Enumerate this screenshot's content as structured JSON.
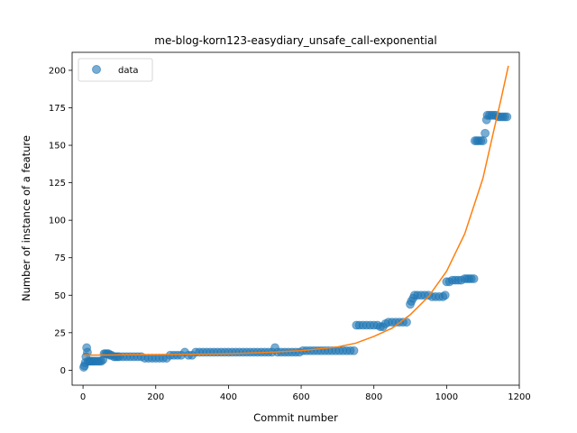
{
  "chart_data": {
    "type": "scatter",
    "title": "me-blog-korn123-easydiary_unsafe_call-exponential",
    "xlabel": "Commit number",
    "ylabel": "Number of instance of a feature",
    "xlim": [
      -30,
      1200
    ],
    "ylim": [
      -10,
      212
    ],
    "xticks": [
      0,
      200,
      400,
      600,
      800,
      1000,
      1200
    ],
    "yticks": [
      0,
      25,
      50,
      75,
      100,
      125,
      150,
      175,
      200
    ],
    "legend": {
      "placement": "top-left",
      "entries": [
        "data"
      ]
    },
    "colors": {
      "data": "#1f77b4",
      "fit": "#ff7f0e"
    },
    "series": [
      {
        "name": "data",
        "kind": "scatter",
        "points": [
          [
            2,
            2
          ],
          [
            4,
            3
          ],
          [
            6,
            5
          ],
          [
            8,
            9
          ],
          [
            10,
            15
          ],
          [
            12,
            12
          ],
          [
            14,
            6
          ],
          [
            18,
            6
          ],
          [
            22,
            6
          ],
          [
            26,
            6
          ],
          [
            30,
            6
          ],
          [
            35,
            6
          ],
          [
            40,
            6
          ],
          [
            45,
            6
          ],
          [
            50,
            6
          ],
          [
            55,
            7
          ],
          [
            58,
            11
          ],
          [
            62,
            11
          ],
          [
            66,
            11
          ],
          [
            70,
            11
          ],
          [
            74,
            10
          ],
          [
            78,
            10
          ],
          [
            85,
            9
          ],
          [
            90,
            9
          ],
          [
            95,
            9
          ],
          [
            100,
            9
          ],
          [
            110,
            9
          ],
          [
            120,
            9
          ],
          [
            130,
            9
          ],
          [
            140,
            9
          ],
          [
            150,
            9
          ],
          [
            160,
            9
          ],
          [
            170,
            8
          ],
          [
            180,
            8
          ],
          [
            190,
            8
          ],
          [
            200,
            8
          ],
          [
            210,
            8
          ],
          [
            220,
            8
          ],
          [
            230,
            8
          ],
          [
            240,
            10
          ],
          [
            250,
            10
          ],
          [
            260,
            10
          ],
          [
            270,
            10
          ],
          [
            280,
            12
          ],
          [
            290,
            10
          ],
          [
            300,
            10
          ],
          [
            310,
            12
          ],
          [
            320,
            12
          ],
          [
            330,
            12
          ],
          [
            340,
            12
          ],
          [
            350,
            12
          ],
          [
            360,
            12
          ],
          [
            370,
            12
          ],
          [
            380,
            12
          ],
          [
            390,
            12
          ],
          [
            400,
            12
          ],
          [
            410,
            12
          ],
          [
            420,
            12
          ],
          [
            430,
            12
          ],
          [
            440,
            12
          ],
          [
            450,
            12
          ],
          [
            460,
            12
          ],
          [
            470,
            12
          ],
          [
            480,
            12
          ],
          [
            490,
            12
          ],
          [
            500,
            12
          ],
          [
            510,
            12
          ],
          [
            520,
            12
          ],
          [
            528,
            15
          ],
          [
            535,
            12
          ],
          [
            545,
            12
          ],
          [
            555,
            12
          ],
          [
            565,
            12
          ],
          [
            575,
            12
          ],
          [
            585,
            12
          ],
          [
            595,
            12
          ],
          [
            605,
            13
          ],
          [
            615,
            13
          ],
          [
            625,
            13
          ],
          [
            635,
            13
          ],
          [
            645,
            13
          ],
          [
            655,
            13
          ],
          [
            665,
            13
          ],
          [
            675,
            13
          ],
          [
            685,
            13
          ],
          [
            695,
            13
          ],
          [
            705,
            13
          ],
          [
            715,
            13
          ],
          [
            725,
            13
          ],
          [
            735,
            13
          ],
          [
            745,
            13
          ],
          [
            752,
            30
          ],
          [
            760,
            30
          ],
          [
            770,
            30
          ],
          [
            780,
            30
          ],
          [
            790,
            30
          ],
          [
            800,
            30
          ],
          [
            810,
            30
          ],
          [
            818,
            29
          ],
          [
            825,
            29
          ],
          [
            832,
            31
          ],
          [
            840,
            32
          ],
          [
            850,
            32
          ],
          [
            860,
            32
          ],
          [
            870,
            32
          ],
          [
            880,
            32
          ],
          [
            890,
            32
          ],
          [
            900,
            44
          ],
          [
            903,
            46
          ],
          [
            908,
            48
          ],
          [
            912,
            50
          ],
          [
            920,
            50
          ],
          [
            930,
            50
          ],
          [
            940,
            50
          ],
          [
            950,
            50
          ],
          [
            960,
            49
          ],
          [
            970,
            49
          ],
          [
            980,
            49
          ],
          [
            990,
            49
          ],
          [
            996,
            50
          ],
          [
            1000,
            59
          ],
          [
            1008,
            59
          ],
          [
            1016,
            60
          ],
          [
            1024,
            60
          ],
          [
            1032,
            60
          ],
          [
            1040,
            60
          ],
          [
            1050,
            61
          ],
          [
            1056,
            61
          ],
          [
            1062,
            61
          ],
          [
            1068,
            61
          ],
          [
            1075,
            61
          ],
          [
            1078,
            153
          ],
          [
            1083,
            153
          ],
          [
            1088,
            153
          ],
          [
            1094,
            153
          ],
          [
            1100,
            153
          ],
          [
            1106,
            158
          ],
          [
            1110,
            167
          ],
          [
            1112,
            170
          ],
          [
            1118,
            170
          ],
          [
            1124,
            170
          ],
          [
            1130,
            170
          ],
          [
            1136,
            170
          ],
          [
            1142,
            169
          ],
          [
            1148,
            169
          ],
          [
            1154,
            169
          ],
          [
            1160,
            169
          ],
          [
            1166,
            169
          ]
        ]
      },
      {
        "name": "",
        "kind": "line",
        "points": [
          [
            0,
            10
          ],
          [
            100,
            10.2
          ],
          [
            200,
            10.4
          ],
          [
            300,
            10.6
          ],
          [
            400,
            11
          ],
          [
            500,
            11.8
          ],
          [
            600,
            13
          ],
          [
            700,
            15.5
          ],
          [
            750,
            18
          ],
          [
            800,
            22.5
          ],
          [
            850,
            28
          ],
          [
            900,
            37
          ],
          [
            950,
            49
          ],
          [
            1000,
            66
          ],
          [
            1050,
            91
          ],
          [
            1100,
            128
          ],
          [
            1130,
            160
          ],
          [
            1150,
            181
          ],
          [
            1170,
            203
          ]
        ]
      }
    ]
  }
}
